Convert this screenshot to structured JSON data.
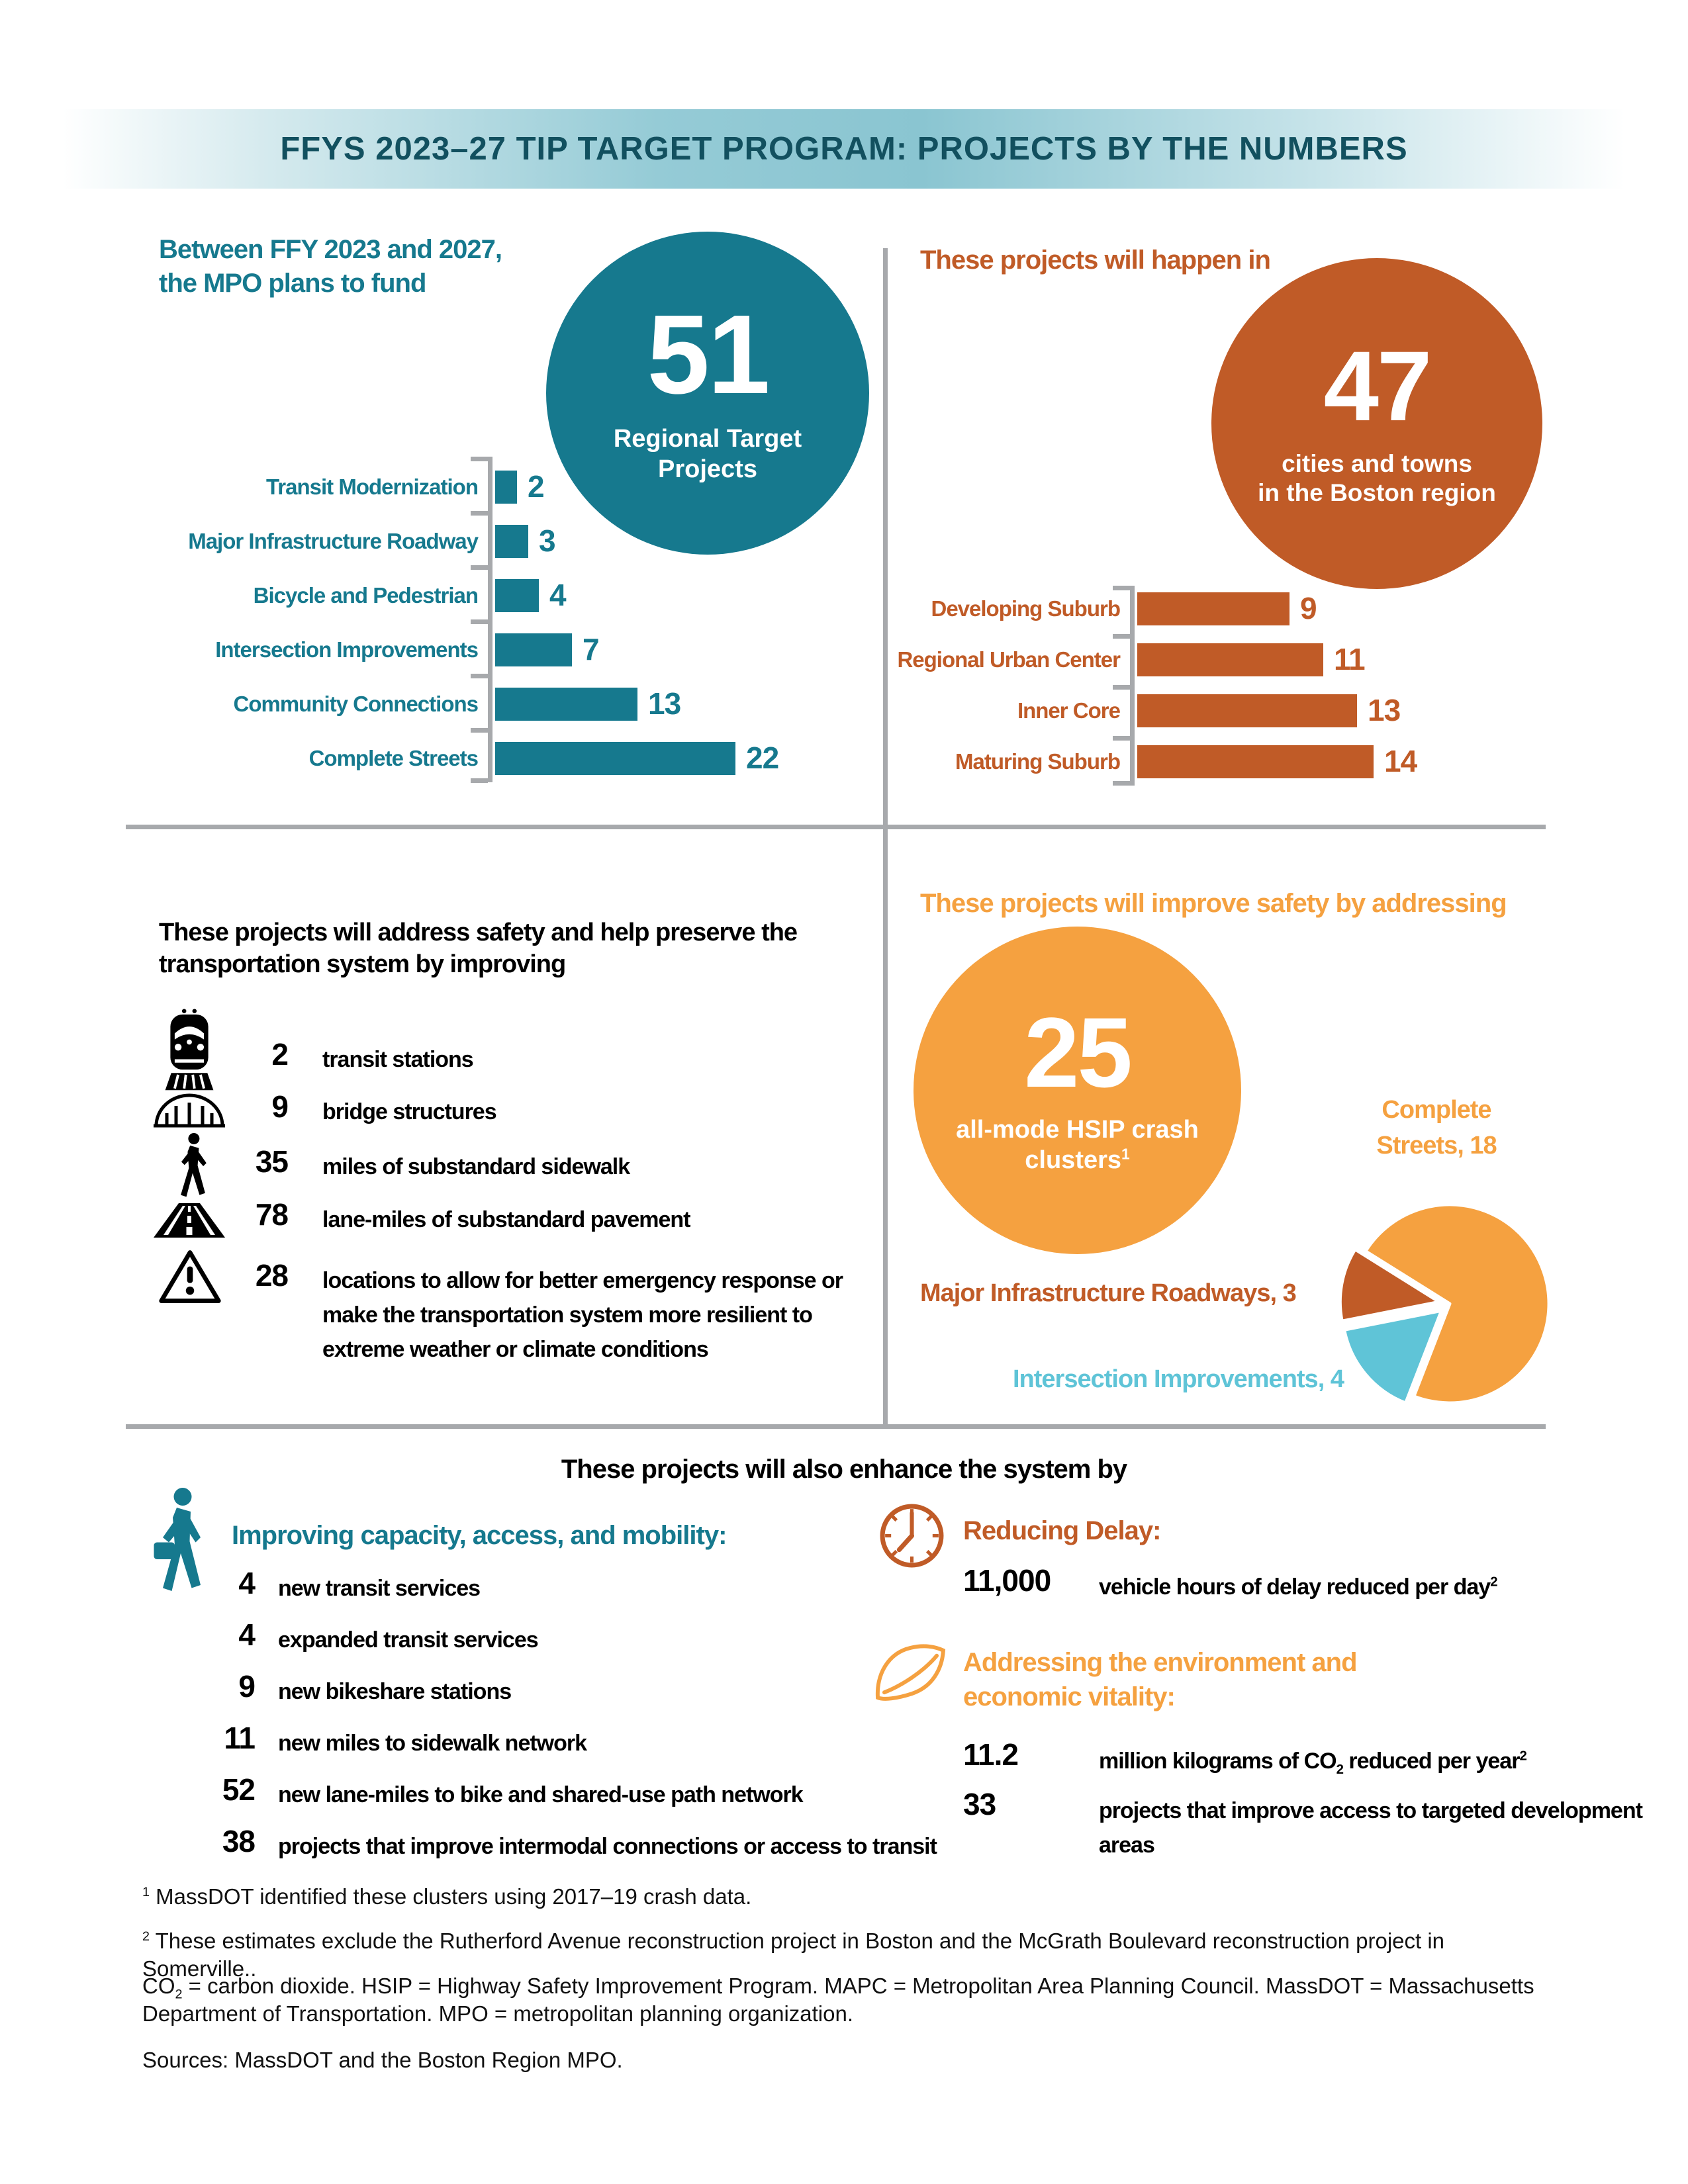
{
  "page": {
    "title": "FFYS 2023–27 TIP TARGET PROGRAM: PROJECTS BY THE NUMBERS"
  },
  "colors": {
    "teal": "#16798E",
    "dark_teal": "#12505F",
    "rust": "#C05B27",
    "orange": "#F5A140",
    "light_blue": "#5FC4D7",
    "gray": "#A7A9AC"
  },
  "funding": {
    "heading": "Between FFY 2023 and 2027,\nthe MPO plans to fund",
    "circle_value": "51",
    "circle_label": "Regional Target\nProjects"
  },
  "locations": {
    "heading": "These projects will happen in",
    "circle_value": "47",
    "circle_label": "cities and towns\nin the Boston region"
  },
  "safety": {
    "heading": "These projects will address safety and help preserve the transportation system by improving",
    "items": [
      {
        "icon": "train-icon",
        "value": "2",
        "text": "transit stations"
      },
      {
        "icon": "bridge-icon",
        "value": "9",
        "text": "bridge structures"
      },
      {
        "icon": "pedestrian-icon",
        "value": "35",
        "text": "miles of substandard sidewalk"
      },
      {
        "icon": "road-icon",
        "value": "78",
        "text": "lane-miles of substandard pavement"
      },
      {
        "icon": "warning-icon",
        "value": "28",
        "text": "locations to allow for better emergency response or make the transportation system more resilient to extreme weather or climate conditions"
      }
    ]
  },
  "improve_safety": {
    "heading": "These projects will improve safety by addressing",
    "circle_value": "25",
    "circle_label": "all-mode HSIP crash\nclusters",
    "circle_label_sup": "1",
    "pie_labels": {
      "complete_streets": "Complete\nStreets, 18",
      "major_infra": "Major Infrastructure Roadways, 3",
      "intersection": "Intersection Improvements, 4"
    }
  },
  "enhance": {
    "heading": "These projects will also enhance the system by",
    "capacity": {
      "heading": "Improving capacity, access, and mobility:",
      "items": [
        {
          "value": "4",
          "text": "new transit services"
        },
        {
          "value": "4",
          "text": "expanded transit services"
        },
        {
          "value": "9",
          "text": "new bikeshare stations"
        },
        {
          "value": "11",
          "text": "new miles to sidewalk network"
        },
        {
          "value": "52",
          "text": "new lane-miles to bike and shared-use path network"
        },
        {
          "value": "38",
          "text": "projects that improve intermodal connections or access to transit"
        }
      ]
    },
    "delay": {
      "heading": "Reducing Delay:",
      "value": "11,000",
      "text_parts": [
        {
          "t": "vehicle hours of delay reduced per day"
        },
        {
          "sup": "2"
        }
      ]
    },
    "environment": {
      "heading": "Addressing the environment and\neconomic vitality:",
      "items": [
        {
          "value": "11.2",
          "parts": [
            {
              "t": "million kilograms of CO"
            },
            {
              "sub": "2"
            },
            {
              "t": " reduced per year"
            },
            {
              "sup": "2"
            }
          ]
        },
        {
          "value": "33",
          "parts": [
            {
              "t": "projects that improve access to targeted development areas"
            }
          ]
        }
      ]
    }
  },
  "footnotes": [
    {
      "sup": "1",
      "parts": [
        {
          "t": " MassDOT identified these clusters using 2017–19 crash data."
        }
      ]
    },
    {
      "sup": "2",
      "parts": [
        {
          "t": " These estimates exclude the Rutherford Avenue reconstruction project in Boston and the McGrath Boulevard reconstruction project in Somerville.."
        }
      ]
    },
    {
      "parts": [
        {
          "t": "CO"
        },
        {
          "sub": "2"
        },
        {
          "t": " = carbon dioxide. HSIP = Highway Safety Improvement Program. MAPC = Metropolitan Area Planning Council. MassDOT = Massachusetts Department of Transportation. MPO = metropolitan planning organization."
        }
      ]
    },
    {
      "parts": [
        {
          "t": "Sources: MassDOT and the Boston Region MPO."
        }
      ]
    }
  ],
  "chart_data": [
    {
      "type": "bar",
      "orientation": "horizontal",
      "title": "Between FFY 2023 and 2027, the MPO plans to fund 51 Regional Target Projects",
      "categories": [
        "Transit Modernization",
        "Major Infrastructure Roadway",
        "Bicycle and Pedestrian",
        "Intersection Improvements",
        "Community Connections",
        "Complete Streets"
      ],
      "values": [
        2,
        3,
        4,
        7,
        13,
        22
      ],
      "bar_color": "#16798E",
      "xlim": [
        0,
        22
      ],
      "grid": false,
      "data_labels": true,
      "callout_value": 51
    },
    {
      "type": "bar",
      "orientation": "horizontal",
      "title": "These projects will happen in 47 cities and towns in the Boston region",
      "categories": [
        "Developing Suburb",
        "Regional Urban Center",
        "Inner Core",
        "Maturing Suburb"
      ],
      "values": [
        9,
        11,
        13,
        14
      ],
      "bar_color": "#C05B27",
      "xlim": [
        0,
        14
      ],
      "grid": false,
      "data_labels": true,
      "callout_value": 47
    },
    {
      "type": "pie",
      "title": "These projects will improve safety by addressing 25 all-mode HSIP crash clusters",
      "labels": [
        "Complete Streets",
        "Major Infrastructure Roadways",
        "Intersection Improvements"
      ],
      "values": [
        18,
        3,
        4
      ],
      "colors": [
        "#F5A140",
        "#C05B27",
        "#5FC4D7"
      ],
      "callout_value": 25
    }
  ]
}
